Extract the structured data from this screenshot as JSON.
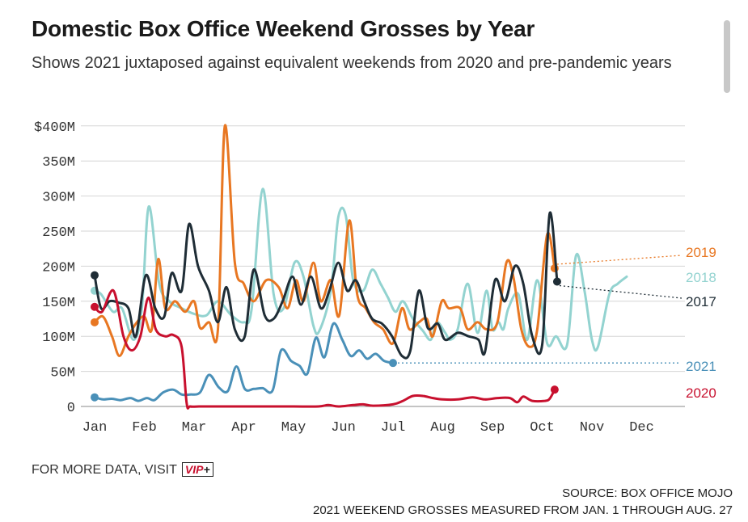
{
  "title": "Domestic Box Office Weekend Grosses by Year",
  "subtitle": "Shows 2021 juxtaposed against equivalent weekends from 2020 and pre-pandemic years",
  "footer": {
    "more_data": "FOR MORE DATA, VISIT",
    "vip_text": "VIP",
    "vip_plus": "+",
    "source": "SOURCE: BOX OFFICE MOJO",
    "note": "2021 WEEKEND GROSSES MEASURED FROM JAN. 1 THROUGH AUG. 27"
  },
  "colors": {
    "2017": "#1f2d36",
    "2018": "#93d3d0",
    "2019": "#e87722",
    "2020": "#c8102e",
    "2021": "#4a90b8",
    "grid": "#d5d5d5"
  },
  "chart_data": {
    "type": "line",
    "ylim": [
      0,
      400
    ],
    "y_ticks": [
      {
        "value": 0,
        "label": "0"
      },
      {
        "value": 50,
        "label": "50M"
      },
      {
        "value": 100,
        "label": "100M"
      },
      {
        "value": 150,
        "label": "150M"
      },
      {
        "value": 200,
        "label": "200M"
      },
      {
        "value": 250,
        "label": "250M"
      },
      {
        "value": 300,
        "label": "300M"
      },
      {
        "value": 350,
        "label": "350M"
      },
      {
        "value": 400,
        "label": "$400M"
      }
    ],
    "x_ticks": [
      {
        "value": 1,
        "label": "Jan"
      },
      {
        "value": 2,
        "label": "Feb"
      },
      {
        "value": 3,
        "label": "Mar"
      },
      {
        "value": 4,
        "label": "Apr"
      },
      {
        "value": 5,
        "label": "May"
      },
      {
        "value": 6,
        "label": "Jun"
      },
      {
        "value": 7,
        "label": "Jul"
      },
      {
        "value": 8,
        "label": "Aug"
      },
      {
        "value": 9,
        "label": "Sep"
      },
      {
        "value": 10,
        "label": "Oct"
      },
      {
        "value": 11,
        "label": "Nov"
      },
      {
        "value": 12,
        "label": "Dec"
      }
    ],
    "series": [
      {
        "name": "2018",
        "color_key": "2018",
        "start_dot": true,
        "end_dot": false,
        "end_dotted": false,
        "points": [
          [
            1.0,
            165
          ],
          [
            1.13,
            160
          ],
          [
            1.37,
            135
          ],
          [
            1.55,
            140
          ],
          [
            1.78,
            95
          ],
          [
            1.95,
            140
          ],
          [
            2.09,
            285
          ],
          [
            2.3,
            175
          ],
          [
            2.5,
            150
          ],
          [
            2.75,
            140
          ],
          [
            3.0,
            132
          ],
          [
            3.25,
            130
          ],
          [
            3.48,
            150
          ],
          [
            3.75,
            130
          ],
          [
            4.0,
            120
          ],
          [
            4.16,
            140
          ],
          [
            4.38,
            310
          ],
          [
            4.6,
            160
          ],
          [
            4.8,
            140
          ],
          [
            5.02,
            205
          ],
          [
            5.2,
            185
          ],
          [
            5.4,
            115
          ],
          [
            5.52,
            108
          ],
          [
            5.75,
            165
          ],
          [
            5.9,
            270
          ],
          [
            6.05,
            272
          ],
          [
            6.2,
            180
          ],
          [
            6.4,
            165
          ],
          [
            6.58,
            195
          ],
          [
            6.75,
            175
          ],
          [
            6.9,
            155
          ],
          [
            7.05,
            135
          ],
          [
            7.2,
            150
          ],
          [
            7.4,
            125
          ],
          [
            7.6,
            108
          ],
          [
            7.76,
            95
          ],
          [
            7.88,
            120
          ],
          [
            8.05,
            105
          ],
          [
            8.15,
            95
          ],
          [
            8.3,
            110
          ],
          [
            8.5,
            175
          ],
          [
            8.7,
            105
          ],
          [
            8.88,
            165
          ],
          [
            9.0,
            110
          ],
          [
            9.12,
            120
          ],
          [
            9.22,
            110
          ],
          [
            9.32,
            140
          ],
          [
            9.52,
            160
          ],
          [
            9.7,
            95
          ],
          [
            9.9,
            180
          ],
          [
            10.1,
            90
          ],
          [
            10.28,
            100
          ],
          [
            10.5,
            88
          ],
          [
            10.68,
            215
          ],
          [
            10.85,
            165
          ],
          [
            11.0,
            95
          ],
          [
            11.12,
            85
          ],
          [
            11.35,
            160
          ],
          [
            11.52,
            175
          ],
          [
            11.7,
            185
          ]
        ]
      },
      {
        "name": "2019",
        "color_key": "2019",
        "start_dot": true,
        "end_dot": true,
        "end_dotted": true,
        "points": [
          [
            1.0,
            120
          ],
          [
            1.17,
            128
          ],
          [
            1.35,
            100
          ],
          [
            1.5,
            72
          ],
          [
            1.68,
            100
          ],
          [
            1.85,
            120
          ],
          [
            2.0,
            128
          ],
          [
            2.15,
            110
          ],
          [
            2.28,
            210
          ],
          [
            2.42,
            140
          ],
          [
            2.62,
            150
          ],
          [
            2.82,
            135
          ],
          [
            3.0,
            150
          ],
          [
            3.12,
            112
          ],
          [
            3.3,
            120
          ],
          [
            3.48,
            110
          ],
          [
            3.62,
            400
          ],
          [
            3.82,
            205
          ],
          [
            4.0,
            175
          ],
          [
            4.2,
            150
          ],
          [
            4.45,
            180
          ],
          [
            4.7,
            170
          ],
          [
            4.88,
            140
          ],
          [
            5.05,
            180
          ],
          [
            5.2,
            150
          ],
          [
            5.4,
            205
          ],
          [
            5.55,
            150
          ],
          [
            5.75,
            180
          ],
          [
            5.92,
            130
          ],
          [
            6.12,
            265
          ],
          [
            6.28,
            160
          ],
          [
            6.45,
            140
          ],
          [
            6.62,
            120
          ],
          [
            6.8,
            110
          ],
          [
            7.0,
            90
          ],
          [
            7.18,
            140
          ],
          [
            7.33,
            110
          ],
          [
            7.52,
            120
          ],
          [
            7.68,
            125
          ],
          [
            7.8,
            100
          ],
          [
            7.98,
            150
          ],
          [
            8.12,
            140
          ],
          [
            8.35,
            140
          ],
          [
            8.5,
            110
          ],
          [
            8.7,
            120
          ],
          [
            8.88,
            110
          ],
          [
            9.1,
            120
          ],
          [
            9.28,
            205
          ],
          [
            9.42,
            185
          ],
          [
            9.58,
            110
          ],
          [
            9.75,
            85
          ],
          [
            9.9,
            110
          ],
          [
            10.1,
            245
          ],
          [
            10.25,
            197
          ]
        ]
      },
      {
        "name": "2017",
        "color_key": "2017",
        "start_dot": true,
        "end_dot": true,
        "end_dotted": true,
        "points": [
          [
            1.0,
            187
          ],
          [
            1.13,
            140
          ],
          [
            1.3,
            150
          ],
          [
            1.48,
            148
          ],
          [
            1.68,
            140
          ],
          [
            1.83,
            100
          ],
          [
            2.03,
            187
          ],
          [
            2.22,
            140
          ],
          [
            2.4,
            128
          ],
          [
            2.55,
            190
          ],
          [
            2.75,
            165
          ],
          [
            2.9,
            260
          ],
          [
            3.08,
            200
          ],
          [
            3.3,
            165
          ],
          [
            3.48,
            120
          ],
          [
            3.65,
            170
          ],
          [
            3.82,
            110
          ],
          [
            4.02,
            100
          ],
          [
            4.2,
            195
          ],
          [
            4.42,
            130
          ],
          [
            4.6,
            125
          ],
          [
            4.78,
            150
          ],
          [
            4.98,
            185
          ],
          [
            5.15,
            145
          ],
          [
            5.35,
            185
          ],
          [
            5.55,
            140
          ],
          [
            5.72,
            165
          ],
          [
            5.9,
            205
          ],
          [
            6.08,
            165
          ],
          [
            6.25,
            180
          ],
          [
            6.42,
            150
          ],
          [
            6.58,
            125
          ],
          [
            6.78,
            118
          ],
          [
            6.98,
            100
          ],
          [
            7.18,
            72
          ],
          [
            7.35,
            80
          ],
          [
            7.52,
            165
          ],
          [
            7.7,
            112
          ],
          [
            7.9,
            118
          ],
          [
            8.05,
            95
          ],
          [
            8.3,
            105
          ],
          [
            8.52,
            100
          ],
          [
            8.72,
            95
          ],
          [
            8.85,
            78
          ],
          [
            9.05,
            180
          ],
          [
            9.25,
            150
          ],
          [
            9.45,
            200
          ],
          [
            9.62,
            175
          ],
          [
            9.8,
            100
          ],
          [
            10.0,
            88
          ],
          [
            10.15,
            275
          ],
          [
            10.3,
            178
          ]
        ]
      },
      {
        "name": "2021",
        "color_key": "2021",
        "start_dot": true,
        "end_dot": true,
        "end_dotted": true,
        "points": [
          [
            1.0,
            13
          ],
          [
            1.17,
            10
          ],
          [
            1.35,
            11
          ],
          [
            1.52,
            9
          ],
          [
            1.72,
            12
          ],
          [
            1.88,
            8
          ],
          [
            2.05,
            12
          ],
          [
            2.2,
            9
          ],
          [
            2.38,
            20
          ],
          [
            2.58,
            24
          ],
          [
            2.75,
            17
          ],
          [
            2.92,
            17
          ],
          [
            3.12,
            20
          ],
          [
            3.3,
            45
          ],
          [
            3.5,
            27
          ],
          [
            3.68,
            22
          ],
          [
            3.85,
            57
          ],
          [
            4.02,
            25
          ],
          [
            4.2,
            25
          ],
          [
            4.38,
            26
          ],
          [
            4.58,
            23
          ],
          [
            4.75,
            80
          ],
          [
            4.95,
            65
          ],
          [
            5.12,
            58
          ],
          [
            5.28,
            47
          ],
          [
            5.45,
            98
          ],
          [
            5.62,
            70
          ],
          [
            5.8,
            118
          ],
          [
            5.98,
            95
          ],
          [
            6.15,
            72
          ],
          [
            6.32,
            80
          ],
          [
            6.48,
            68
          ],
          [
            6.65,
            75
          ],
          [
            6.82,
            65
          ],
          [
            7.0,
            62
          ]
        ]
      },
      {
        "name": "2020",
        "color_key": "2020",
        "start_dot": true,
        "end_dot": true,
        "end_dotted": false,
        "points": [
          [
            1.0,
            142
          ],
          [
            1.15,
            135
          ],
          [
            1.38,
            165
          ],
          [
            1.58,
            100
          ],
          [
            1.75,
            80
          ],
          [
            1.92,
            100
          ],
          [
            2.08,
            155
          ],
          [
            2.23,
            110
          ],
          [
            2.42,
            100
          ],
          [
            2.58,
            102
          ],
          [
            2.75,
            85
          ],
          [
            2.85,
            5
          ],
          [
            2.92,
            0
          ],
          [
            3.1,
            0
          ],
          [
            3.5,
            0
          ],
          [
            4.0,
            0
          ],
          [
            4.5,
            0
          ],
          [
            5.0,
            0
          ],
          [
            5.5,
            0
          ],
          [
            5.7,
            2
          ],
          [
            5.9,
            0
          ],
          [
            6.2,
            2
          ],
          [
            6.4,
            3
          ],
          [
            6.6,
            1
          ],
          [
            7.0,
            3
          ],
          [
            7.2,
            8
          ],
          [
            7.4,
            15
          ],
          [
            7.6,
            15
          ],
          [
            7.8,
            12
          ],
          [
            8.0,
            10
          ],
          [
            8.3,
            10
          ],
          [
            8.6,
            13
          ],
          [
            8.85,
            10
          ],
          [
            9.1,
            12
          ],
          [
            9.35,
            12
          ],
          [
            9.5,
            6
          ],
          [
            9.62,
            14
          ],
          [
            9.8,
            8
          ],
          [
            10.05,
            8
          ],
          [
            10.15,
            11
          ],
          [
            10.25,
            24
          ]
        ]
      }
    ],
    "end_labels": [
      {
        "name": "2019",
        "text": "2019",
        "color_key": "2019"
      },
      {
        "name": "2018",
        "text": "2018",
        "color_key": "2018"
      },
      {
        "name": "2017",
        "text": "2017",
        "color_key": "2017"
      },
      {
        "name": "2021",
        "text": "2021",
        "color_key": "2021"
      },
      {
        "name": "2020",
        "text": "2020",
        "color_key": "2020"
      }
    ]
  }
}
